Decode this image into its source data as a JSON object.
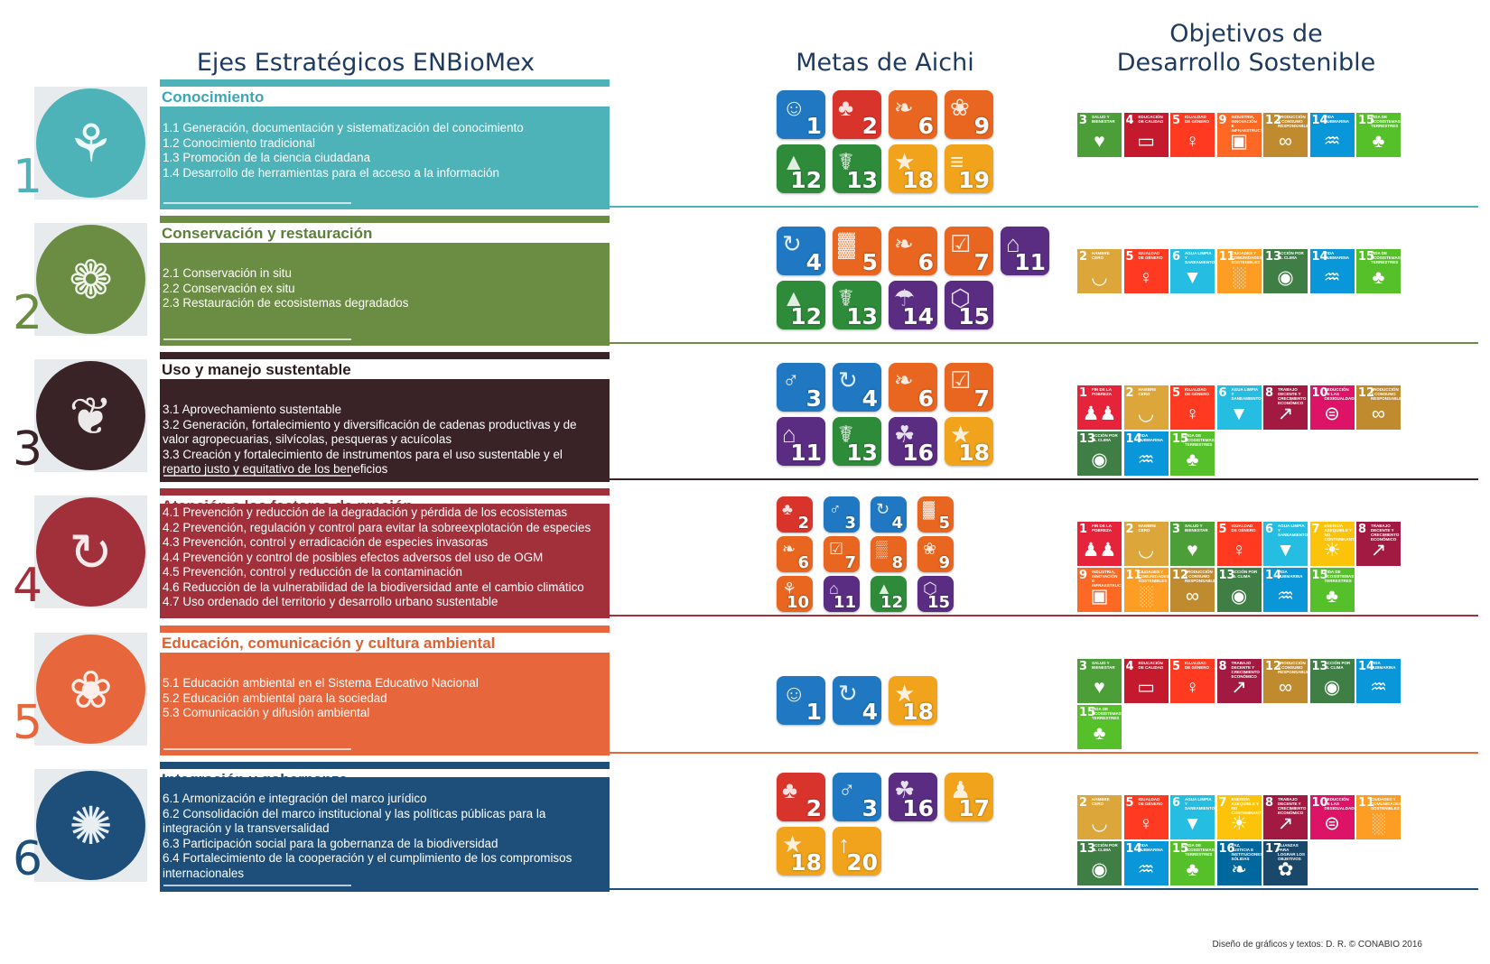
{
  "headers": {
    "axes": "Ejes Estratégicos ENBioMex",
    "aichi": "Metas de Aichi",
    "ods_line1": "Objetivos de",
    "ods_line2": "Desarrollo Sostenible"
  },
  "axes": [
    {
      "number": "1",
      "title": "Conocimiento",
      "color": "#4db3b8",
      "title_color": "#3aa7b8",
      "icon": "tree-roots-icon",
      "items": [
        "1.1 Generación, documentación y sistematización del conocimiento",
        "1.2 Conocimiento tradicional",
        "1.3 Promoción de la ciencia ciudadana",
        "1.4 Desarrollo de herramientas para el acceso a la información"
      ],
      "aichi": [
        "1",
        "2",
        "6",
        "9",
        "12",
        "13",
        "18",
        "19"
      ],
      "ods": [
        "3",
        "4",
        "5",
        "9",
        "12",
        "14",
        "15"
      ]
    },
    {
      "number": "2",
      "title": "Conservación y restauración",
      "color": "#6b8c43",
      "title_color": "#5c7f3a",
      "icon": "tree-leaves-icon",
      "items": [
        "2.1 Conservación in situ",
        "2.2 Conservación ex situ",
        "2.3 Restauración de ecosistemas degradados"
      ],
      "aichi": [
        "4",
        "5",
        "6",
        "7",
        "11",
        "12",
        "13",
        "14",
        "15"
      ],
      "ods": [
        "2",
        "5",
        "6",
        "11",
        "13",
        "14",
        "15"
      ]
    },
    {
      "number": "3",
      "title": "Uso y manejo sustentable",
      "color": "#3a2327",
      "title_color": "#2b1b1d",
      "icon": "hands-resources-icon",
      "items": [
        "3.1 Aprovechamiento sustentable",
        "3.2 Generación, fortalecimiento y diversificación de cadenas productivas y de valor agropecuarias, silvícolas, pesqueras y acuícolas",
        "3.3 Creación y fortalecimiento de instrumentos para el uso sustentable y el reparto justo y equitativo de los beneficios"
      ],
      "aichi": [
        "3",
        "4",
        "6",
        "7",
        "11",
        "13",
        "16",
        "18"
      ],
      "ods": [
        "1",
        "2",
        "5",
        "6",
        "8",
        "10",
        "12",
        "13",
        "14",
        "15"
      ]
    },
    {
      "number": "4",
      "title": "Atención a los factores de presión",
      "color": "#a1303b",
      "title_color": "#a1303b",
      "icon": "pressure-cycle-icon",
      "items": [
        "4.1 Prevención y reducción de la degradación y pérdida de los ecosistemas",
        "4.2 Prevención, regulación y control  para evitar la sobreexplotación de especies",
        "4.3 Prevención, control y erradicación de especies invasoras",
        "4.4 Prevención y control de posibles efectos adversos del uso de OGM",
        "4.5 Prevención, control y reducción de la contaminación",
        "4.6 Reducción de la vulnerabilidad de la biodiversidad ante el cambio climático",
        "4.7 Uso ordenado del territorio y desarrollo urbano sustentable"
      ],
      "aichi": [
        "2",
        "3",
        "4",
        "5",
        "6",
        "7",
        "8",
        "9",
        "10",
        "11",
        "12",
        "15"
      ],
      "ods": [
        "1",
        "2",
        "3",
        "5",
        "6",
        "7",
        "8",
        "9",
        "11",
        "12",
        "13",
        "14",
        "15"
      ]
    },
    {
      "number": "5",
      "title": "Educación, comunicación y cultura ambiental",
      "color": "#e8663c",
      "title_color": "#e0602f",
      "icon": "book-tree-icon",
      "items": [
        "5.1 Educación ambiental en el Sistema Educativo Nacional",
        "5.2 Educación ambiental para la sociedad",
        "5.3 Comunicación y difusión ambiental"
      ],
      "aichi": [
        "1",
        "4",
        "18"
      ],
      "ods": [
        "3",
        "4",
        "5",
        "8",
        "12",
        "13",
        "14",
        "15"
      ]
    },
    {
      "number": "6",
      "title": "Integración y gobernanza",
      "color": "#1d4f7a",
      "title_color": "#1d4f7a",
      "icon": "people-circle-icon",
      "items": [
        "6.1 Armonización e integración del marco jurídico",
        "6.2 Consolidación del marco institucional y las políticas públicas para la integración y la transversalidad",
        "6.3 Participación social para la gobernanza de la biodiversidad",
        "6.4 Fortalecimiento de la cooperación y el cumplimiento de los compromisos internacionales"
      ],
      "aichi": [
        "2",
        "3",
        "16",
        "17",
        "18",
        "20"
      ],
      "ods": [
        "2",
        "5",
        "6",
        "7",
        "8",
        "10",
        "11",
        "13",
        "14",
        "15",
        "16",
        "17"
      ]
    }
  ],
  "sdg_info": {
    "1": {
      "label": "Fin de la pobreza",
      "color": "#e5243b",
      "icon": "family-icon"
    },
    "2": {
      "label": "Hambre cero",
      "color": "#dda63a",
      "icon": "bowl-icon"
    },
    "3": {
      "label": "Salud y bienestar",
      "color": "#4c9f38",
      "icon": "heartbeat-icon"
    },
    "4": {
      "label": "Educación de calidad",
      "color": "#c5192d",
      "icon": "book-icon"
    },
    "5": {
      "label": "Igualdad de género",
      "color": "#ff3a21",
      "icon": "gender-icon"
    },
    "6": {
      "label": "Agua limpia y saneamiento",
      "color": "#26bde2",
      "icon": "water-drop-icon"
    },
    "7": {
      "label": "Energía asequible y no contaminante",
      "color": "#fcc30b",
      "icon": "sun-icon"
    },
    "8": {
      "label": "Trabajo decente y crecimiento económico",
      "color": "#a21942",
      "icon": "growth-chart-icon"
    },
    "9": {
      "label": "Industria, innovación e infraestructura",
      "color": "#fd6925",
      "icon": "cubes-icon"
    },
    "10": {
      "label": "Reducción de las desigualdades",
      "color": "#dd1367",
      "icon": "equal-icon"
    },
    "11": {
      "label": "Ciudades y comunidades sostenibles",
      "color": "#fd9d24",
      "icon": "city-icon"
    },
    "12": {
      "label": "Producción y consumo responsables",
      "color": "#bf8b2e",
      "icon": "infinity-icon"
    },
    "13": {
      "label": "Acción por el clima",
      "color": "#3f7e44",
      "icon": "eye-globe-icon"
    },
    "14": {
      "label": "Vida submarina",
      "color": "#0a97d9",
      "icon": "fish-icon"
    },
    "15": {
      "label": "Vida de ecosistemas terrestres",
      "color": "#56c02b",
      "icon": "tree-birds-icon"
    },
    "16": {
      "label": "Paz, justicia e instituciones sólidas",
      "color": "#00689d",
      "icon": "dove-icon"
    },
    "17": {
      "label": "Alianzas para lograr los objetivos",
      "color": "#19486a",
      "icon": "partnership-icon"
    }
  },
  "aichi_info": {
    "1": {
      "color": "#1f78c1",
      "icon": "head-icon"
    },
    "2": {
      "color": "#d9342b",
      "icon": "tree-icon"
    },
    "3": {
      "color": "#1f78c1",
      "icon": "person-icon"
    },
    "4": {
      "color": "#1f78c1",
      "icon": "cycle-tree-icon"
    },
    "5": {
      "color": "#e8661f",
      "icon": "forest-icon"
    },
    "6": {
      "color": "#e8661f",
      "icon": "fish-icon"
    },
    "7": {
      "color": "#e8661f",
      "icon": "checkbox-icon"
    },
    "8": {
      "color": "#e8661f",
      "icon": "pollution-icon"
    },
    "9": {
      "color": "#e8661f",
      "icon": "invasive-icon"
    },
    "10": {
      "color": "#e8661f",
      "icon": "coral-icon"
    },
    "11": {
      "color": "#5a2d82",
      "icon": "protected-area-icon"
    },
    "12": {
      "color": "#2e8b3a",
      "icon": "bear-icon"
    },
    "13": {
      "color": "#2e8b3a",
      "icon": "genetic-icon"
    },
    "14": {
      "color": "#5a2d82",
      "icon": "ecosystem-icon"
    },
    "15": {
      "color": "#5a2d82",
      "icon": "molecule-icon"
    },
    "16": {
      "color": "#5a2d82",
      "icon": "leaf-hand-icon"
    },
    "17": {
      "color": "#f1a31c",
      "icon": "figure-icon"
    },
    "18": {
      "color": "#f1a31c",
      "icon": "knowledge-icon"
    },
    "19": {
      "color": "#f1a31c",
      "icon": "data-icon"
    },
    "20": {
      "color": "#f1a31c",
      "icon": "resources-icon"
    }
  },
  "credit": "Diseño de gráficos y textos:  D. R. © CONABIO 2016"
}
